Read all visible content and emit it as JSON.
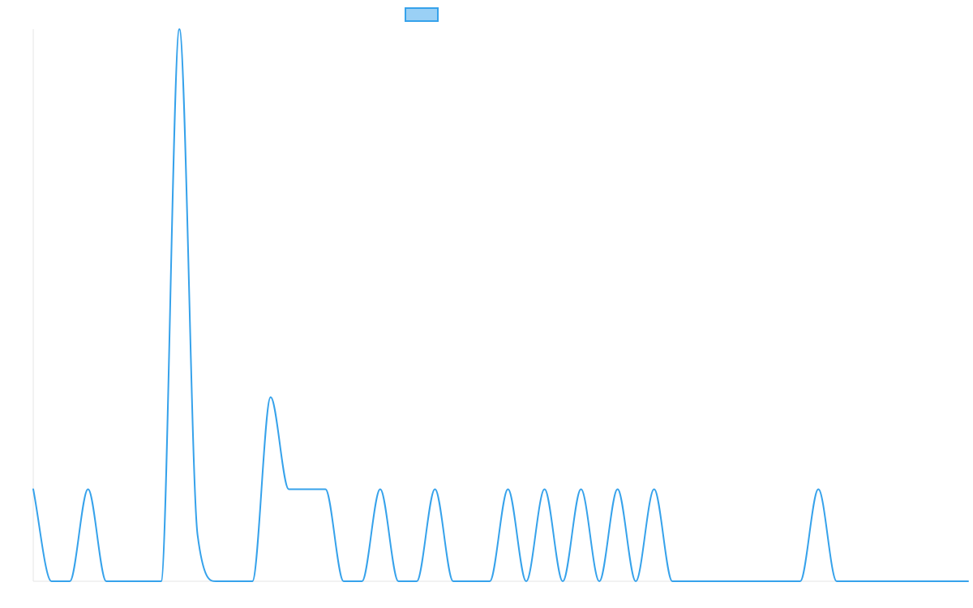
{
  "chart_data": {
    "type": "line",
    "title": "",
    "xlabel": "",
    "ylabel": "",
    "legend": {
      "position": "top",
      "entries": [
        {
          "label": ""
        }
      ]
    },
    "grid": false,
    "xlim": [
      0,
      1.0
    ],
    "ylim": [
      0,
      6
    ],
    "colors": {
      "line": "#36a2eb",
      "fill": "#9ad0f5"
    },
    "series": [
      {
        "name": "",
        "points": [
          [
            0.0,
            1.0
          ],
          [
            0.0195,
            0.0
          ],
          [
            0.0391,
            0.0
          ],
          [
            0.0586,
            1.0
          ],
          [
            0.0781,
            0.0
          ],
          [
            0.0977,
            0.0
          ],
          [
            0.1172,
            0.0
          ],
          [
            0.1367,
            0.0
          ],
          [
            0.1563,
            6.0
          ],
          [
            0.1758,
            0.5
          ],
          [
            0.1953,
            0.0
          ],
          [
            0.2148,
            0.0
          ],
          [
            0.2344,
            0.0
          ],
          [
            0.2539,
            2.0
          ],
          [
            0.2734,
            1.0
          ],
          [
            0.293,
            1.0
          ],
          [
            0.3125,
            1.0
          ],
          [
            0.332,
            0.0
          ],
          [
            0.3516,
            0.0
          ],
          [
            0.3711,
            1.0
          ],
          [
            0.3906,
            0.0
          ],
          [
            0.4102,
            0.0
          ],
          [
            0.4297,
            1.0
          ],
          [
            0.4492,
            0.0
          ],
          [
            0.4688,
            0.0
          ],
          [
            0.4883,
            0.0
          ],
          [
            0.5078,
            1.0
          ],
          [
            0.5273,
            0.0
          ],
          [
            0.5469,
            1.0
          ],
          [
            0.5664,
            0.0
          ],
          [
            0.5859,
            1.0
          ],
          [
            0.6055,
            0.0
          ],
          [
            0.625,
            1.0
          ],
          [
            0.6445,
            0.0
          ],
          [
            0.6641,
            1.0
          ],
          [
            0.6836,
            0.0
          ],
          [
            0.7031,
            0.0
          ],
          [
            0.7227,
            0.0
          ],
          [
            0.7422,
            0.0
          ],
          [
            0.7617,
            0.0
          ],
          [
            0.7813,
            0.0
          ],
          [
            0.8008,
            0.0
          ],
          [
            0.8203,
            0.0
          ],
          [
            0.8398,
            1.0
          ],
          [
            0.8594,
            0.0
          ],
          [
            0.8789,
            0.0
          ],
          [
            0.8984,
            0.0
          ],
          [
            0.918,
            0.0
          ],
          [
            0.9375,
            0.0
          ],
          [
            0.957,
            0.0
          ],
          [
            0.9766,
            0.0
          ],
          [
            1.0,
            0.0
          ]
        ]
      }
    ]
  }
}
